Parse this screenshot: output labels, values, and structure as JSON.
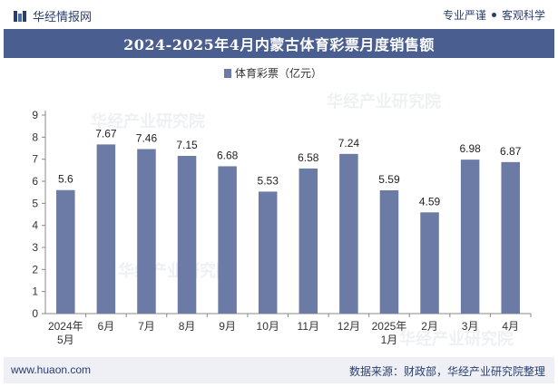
{
  "header": {
    "brand_name": "华经情报网",
    "slogan_left": "专业严谨",
    "slogan_right": "客观科学"
  },
  "title": "2024-2025年4月内蒙古体育彩票月度销售额",
  "footer": {
    "site": "www.huaon.com",
    "source": "数据来源：财政部，华经产业研究院整理"
  },
  "watermark": "华经产业研究院",
  "colors": {
    "bar": "#6c7ba5",
    "title_bg": "#4a5f8f",
    "text": "#2a3e6e"
  },
  "chart_data": {
    "type": "bar",
    "legend": "体育彩票（亿元）",
    "legend_position": "top-center",
    "categories": [
      [
        "2024年",
        "5月"
      ],
      [
        "6月"
      ],
      [
        "7月"
      ],
      [
        "8月"
      ],
      [
        "9月"
      ],
      [
        "10月"
      ],
      [
        "11月"
      ],
      [
        "12月"
      ],
      [
        "2025年",
        "1月"
      ],
      [
        "2月"
      ],
      [
        "3月"
      ],
      [
        "4月"
      ]
    ],
    "values": [
      5.6,
      7.67,
      7.46,
      7.15,
      6.68,
      5.53,
      6.58,
      7.24,
      5.59,
      4.59,
      6.98,
      6.87
    ],
    "data_labels": [
      "5.6",
      "7.67",
      "7.46",
      "7.15",
      "6.68",
      "5.53",
      "6.58",
      "7.24",
      "5.59",
      "4.59",
      "6.98",
      "6.87"
    ],
    "yticks": [
      "0",
      "1",
      "2",
      "3",
      "4",
      "5",
      "6",
      "7",
      "8",
      "9"
    ],
    "ylim": [
      0,
      9
    ],
    "grid": false
  }
}
